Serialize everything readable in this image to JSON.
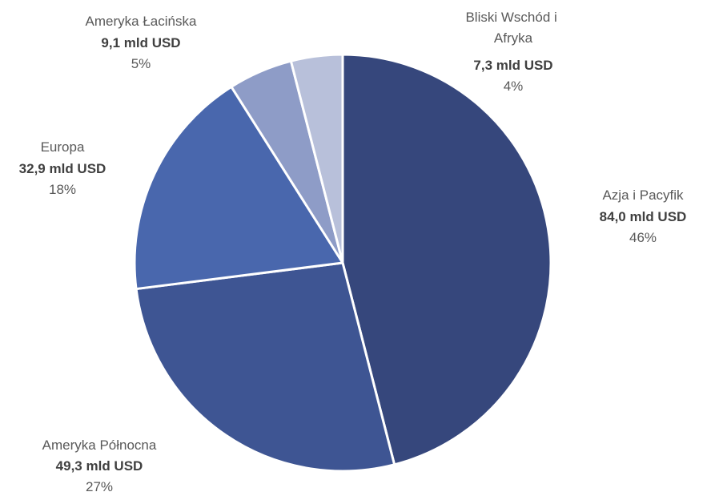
{
  "chart_data": {
    "type": "pie",
    "slices": [
      {
        "name": "Azja i Pacyfik",
        "value_label": "84,0 mld USD",
        "value": 84.0,
        "percent_label": "46%",
        "color": "#36477c"
      },
      {
        "name": "Ameryka Północna",
        "value_label": "49,3 mld USD",
        "value": 49.3,
        "percent_label": "27%",
        "color": "#3e5593"
      },
      {
        "name": "Europa",
        "value_label": "32,9 mld USD",
        "value": 32.9,
        "percent_label": "18%",
        "color": "#4967ad"
      },
      {
        "name": "Ameryka Łacińska",
        "value_label": "9,1 mld USD",
        "value": 9.1,
        "percent_label": "5%",
        "color": "#8e9cc7"
      },
      {
        "name": "Bliski Wschód i Afryka",
        "value_label": "7,3 mld USD",
        "value": 7.3,
        "percent_label": "4%",
        "color": "#b8c0da"
      }
    ]
  }
}
